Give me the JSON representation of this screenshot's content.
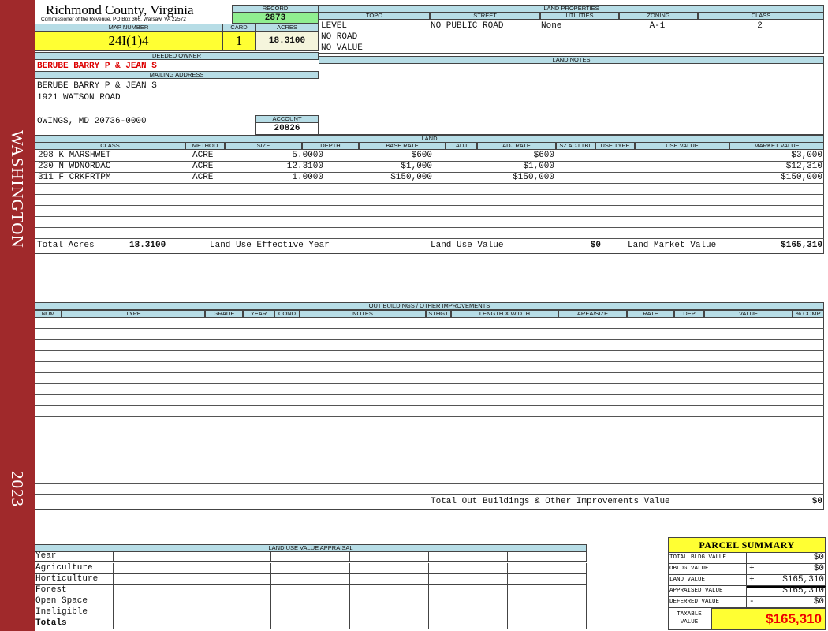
{
  "sidebar": {
    "district": "WASHINGTON",
    "year": "2023"
  },
  "header": {
    "county": "Richmond County, Virginia",
    "office": "Commissioner of the Revenue, PO Box 366, Warsaw, VA 22572"
  },
  "record": {
    "label": "RECORD",
    "value": "2873"
  },
  "map_number": {
    "label": "MAP NUMBER",
    "value": "24I(1)4"
  },
  "card": {
    "label": "CARD",
    "value": "1"
  },
  "acres": {
    "label": "ACRES",
    "value": "18.3100"
  },
  "land_properties": {
    "title": "LAND PROPERTIES",
    "headers": [
      "TOPO",
      "STREET",
      "UTILITIES",
      "ZONING",
      "CLASS"
    ],
    "topo": [
      "LEVEL",
      "NO ROAD",
      "NO VALUE"
    ],
    "street": "NO PUBLIC ROAD",
    "utilities": "None",
    "zoning": "A-1",
    "class": "2"
  },
  "deeded_owner": {
    "label": "DEEDED OWNER",
    "value": "BERUBE BARRY P & JEAN S"
  },
  "mailing_address": {
    "label": "MAILING ADDRESS",
    "lines": [
      "BERUBE BARRY P & JEAN S",
      "1921 WATSON ROAD",
      "OWINGS, MD 20736-0000"
    ]
  },
  "account": {
    "label": "ACCOUNT",
    "value": "20826"
  },
  "land_notes": {
    "title": "LAND NOTES"
  },
  "land": {
    "title": "LAND",
    "headers": [
      "CLASS",
      "METHOD",
      "SIZE",
      "DEPTH",
      "BASE RATE",
      "ADJ",
      "ADJ RATE",
      "SZ ADJ TBL",
      "USE TYPE",
      "USE VALUE",
      "MARKET VALUE"
    ],
    "rows": [
      {
        "class": "298 K MARSHWET",
        "method": "ACRE",
        "size": "5.0000",
        "base_rate": "$600",
        "adj_rate": "$600",
        "market_value": "$3,000"
      },
      {
        "class": "230 N WDNORDAC",
        "method": "ACRE",
        "size": "12.3100",
        "base_rate": "$1,000",
        "adj_rate": "$1,000",
        "market_value": "$12,310"
      },
      {
        "class": "311 F CRKFRTPM",
        "method": "ACRE",
        "size": "1.0000",
        "base_rate": "$150,000",
        "adj_rate": "$150,000",
        "market_value": "$150,000"
      }
    ],
    "totals": {
      "acres_label": "Total Acres",
      "acres": "18.3100",
      "effective_year_label": "Land Use Effective Year",
      "use_value_label": "Land Use Value",
      "use_value": "$0",
      "market_value_label": "Land Market Value",
      "market_value": "$165,310"
    }
  },
  "outbuildings": {
    "title": "OUT BUILDINGS / OTHER IMPROVEMENTS",
    "headers": [
      "NUM",
      "TYPE",
      "GRADE",
      "YEAR",
      "COND",
      "NOTES",
      "STHGT",
      "LENGTH X WIDTH",
      "AREA/SIZE",
      "RATE",
      "DEP",
      "VALUE",
      "% COMP"
    ],
    "total_label": "Total Out Buildings & Other Improvements Value",
    "total_value": "$0"
  },
  "land_use_value_appraisal": {
    "title": "LAND USE VALUE APPRAISAL",
    "rows": [
      "Year",
      "Agriculture",
      "Horticulture",
      "Forest",
      "Open Space",
      "Ineligible",
      "Totals"
    ]
  },
  "parcel_summary": {
    "title": "PARCEL SUMMARY",
    "rows": [
      {
        "label": "TOTAL BLDG VALUE",
        "value": "$0"
      },
      {
        "label": "OBLDG VALUE",
        "sign": "+",
        "value": "$0"
      },
      {
        "label": "LAND VALUE",
        "sign": "+",
        "value": "$165,310"
      },
      {
        "label": "APPRAISED VALUE",
        "value": "$165,310"
      },
      {
        "label": "DEFERRED VALUE",
        "sign": "-",
        "value": "$0"
      }
    ],
    "taxable_label": "TAXABLE VALUE",
    "taxable_value": "$165,310"
  }
}
